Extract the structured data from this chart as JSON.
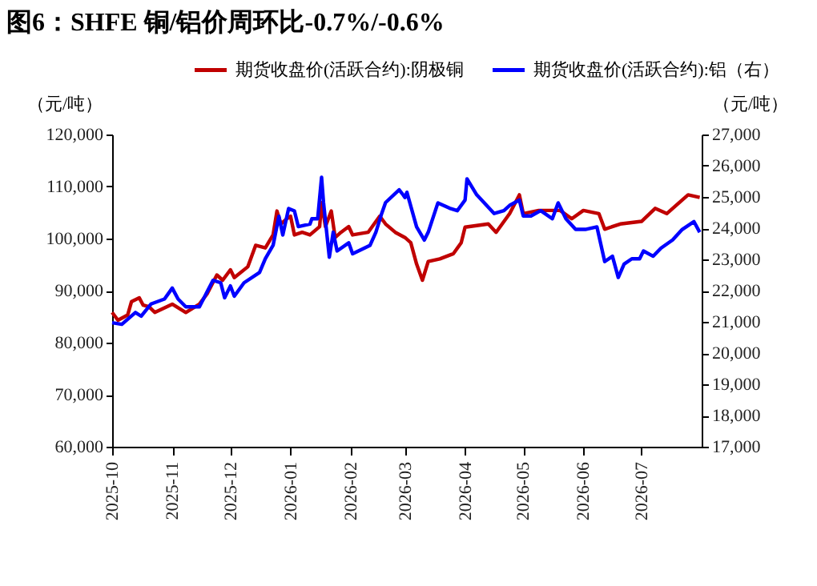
{
  "chart_data": {
    "type": "line",
    "title": "图6：SHFE 铜/铝价周环比-0.7%/-0.6%",
    "ylabel": "（元/吨）",
    "y2label": "（元/吨）",
    "legend": "top",
    "grid": false,
    "marker": "none",
    "line_style": "solid",
    "xlim": [
      "2025-10-01",
      "2026-08-01"
    ],
    "xticks": [
      "2025-10",
      "2025-11",
      "2025-12",
      "2026-01",
      "2026-02",
      "2026-03",
      "2026-04",
      "2026-05",
      "2026-06",
      "2026-07"
    ],
    "ylim": [
      60000,
      120000
    ],
    "yticks": [
      {
        "value": 60000,
        "label": "60,000"
      },
      {
        "value": 70000,
        "label": "70,000"
      },
      {
        "value": 80000,
        "label": "80,000"
      },
      {
        "value": 90000,
        "label": "90,000"
      },
      {
        "value": 100000,
        "label": "100,000"
      },
      {
        "value": 110000,
        "label": "110,000"
      },
      {
        "value": 120000,
        "label": "120,000"
      }
    ],
    "y2lim": [
      17000,
      27000
    ],
    "y2ticks": [
      {
        "value": 17000,
        "label": "17,000"
      },
      {
        "value": 18000,
        "label": "18,000"
      },
      {
        "value": 19000,
        "label": "19,000"
      },
      {
        "value": 20000,
        "label": "20,000"
      },
      {
        "value": 21000,
        "label": "21,000"
      },
      {
        "value": 22000,
        "label": "22,000"
      },
      {
        "value": 23000,
        "label": "23,000"
      },
      {
        "value": 24000,
        "label": "24,000"
      },
      {
        "value": 25000,
        "label": "25,000"
      },
      {
        "value": 26000,
        "label": "26,000"
      },
      {
        "value": 27000,
        "label": "27,000"
      }
    ],
    "series": [
      {
        "name": "期货收盘价(活跃合约):阴极铜",
        "color": "#c00000",
        "x": [
          "2025-10-01",
          "2025-10-04",
          "2025-10-09",
          "2025-10-11",
          "2025-10-15",
          "2025-10-17",
          "2025-10-20",
          "2025-10-23",
          "2025-11-01",
          "2025-11-08",
          "2025-11-15",
          "2025-11-19",
          "2025-11-24",
          "2025-11-27",
          "2025-12-01",
          "2025-12-03",
          "2025-12-10",
          "2025-12-14",
          "2025-12-19",
          "2025-12-23",
          "2025-12-25",
          "2025-12-27",
          "2025-12-30",
          "2026-01-01",
          "2026-01-03",
          "2026-01-07",
          "2026-01-11",
          "2026-01-16",
          "2026-01-17",
          "2026-01-19",
          "2026-01-22",
          "2026-01-24",
          "2026-01-27",
          "2026-01-31",
          "2026-02-02",
          "2026-02-10",
          "2026-02-16",
          "2026-02-19",
          "2026-02-24",
          "2026-03-01",
          "2026-03-04",
          "2026-03-07",
          "2026-03-10",
          "2026-03-13",
          "2026-03-19",
          "2026-03-26",
          "2026-03-30",
          "2026-04-01",
          "2026-04-13",
          "2026-04-17",
          "2026-04-24",
          "2026-04-29",
          "2026-05-01",
          "2026-05-09",
          "2026-05-20",
          "2026-05-26",
          "2026-06-01",
          "2026-06-09",
          "2026-06-12",
          "2026-06-20",
          "2026-07-01",
          "2026-07-08",
          "2026-07-14",
          "2026-07-25",
          "2026-07-31"
        ],
        "values": [
          85800,
          84300,
          85300,
          87900,
          88600,
          87200,
          86900,
          85800,
          87400,
          85800,
          87400,
          89400,
          93000,
          92000,
          94000,
          92500,
          94600,
          98700,
          98200,
          100700,
          105300,
          102800,
          103800,
          104300,
          100700,
          101200,
          100700,
          102300,
          106900,
          102300,
          105300,
          100200,
          101200,
          102300,
          100700,
          101200,
          104300,
          102800,
          101200,
          100200,
          99200,
          95100,
          92000,
          95600,
          96100,
          97100,
          99200,
          102200,
          102800,
          101200,
          104800,
          108400,
          104800,
          105400,
          105400,
          103800,
          105400,
          104800,
          101800,
          102800,
          103300,
          105800,
          104800,
          108400,
          107900
        ]
      },
      {
        "name": "期货收盘价(活跃合约):铝（右）",
        "color": "#0000ff",
        "axis": "y2",
        "x": [
          "2025-10-01",
          "2025-10-06",
          "2025-10-13",
          "2025-10-16",
          "2025-10-21",
          "2025-10-28",
          "2025-11-01",
          "2025-11-04",
          "2025-11-08",
          "2025-11-15",
          "2025-11-22",
          "2025-11-26",
          "2025-11-28",
          "2025-12-01",
          "2025-12-03",
          "2025-12-08",
          "2025-12-16",
          "2025-12-19",
          "2025-12-23",
          "2025-12-26",
          "2025-12-28",
          "2025-12-31",
          "2026-01-03",
          "2026-01-05",
          "2026-01-11",
          "2026-01-12",
          "2026-01-15",
          "2026-01-17",
          "2026-01-18",
          "2026-01-21",
          "2026-01-23",
          "2026-01-25",
          "2026-01-31",
          "2026-02-02",
          "2026-02-11",
          "2026-02-14",
          "2026-02-17",
          "2026-02-19",
          "2026-02-26",
          "2026-02-28",
          "2026-03-01",
          "2026-03-02",
          "2026-03-07",
          "2026-03-11",
          "2026-03-13",
          "2026-03-18",
          "2026-03-24",
          "2026-03-28",
          "2026-04-01",
          "2026-04-02",
          "2026-04-07",
          "2026-04-16",
          "2026-04-21",
          "2026-04-24",
          "2026-04-29",
          "2026-05-01",
          "2026-05-05",
          "2026-05-10",
          "2026-05-16",
          "2026-05-19",
          "2026-05-23",
          "2026-05-28",
          "2026-06-02",
          "2026-06-08",
          "2026-06-12",
          "2026-06-16",
          "2026-06-19",
          "2026-06-22",
          "2026-06-26",
          "2026-06-30",
          "2026-07-02",
          "2026-07-07",
          "2026-07-11",
          "2026-07-17",
          "2026-07-22",
          "2026-07-28",
          "2026-07-31"
        ],
        "values": [
          20970,
          20920,
          21300,
          21180,
          21570,
          21730,
          22080,
          21730,
          21480,
          21480,
          22330,
          22250,
          21770,
          22150,
          21820,
          22250,
          22580,
          23020,
          23450,
          24380,
          23780,
          24630,
          24550,
          24050,
          24130,
          24300,
          24300,
          25630,
          24820,
          23070,
          23870,
          23270,
          23530,
          23180,
          23450,
          23870,
          24470,
          24820,
          25230,
          25070,
          24980,
          25150,
          24040,
          23620,
          23870,
          24810,
          24640,
          24560,
          24900,
          25580,
          25070,
          24470,
          24560,
          24730,
          24900,
          24390,
          24390,
          24560,
          24300,
          24810,
          24300,
          23960,
          23960,
          24040,
          22930,
          23100,
          22420,
          22850,
          23020,
          23020,
          23270,
          23100,
          23360,
          23620,
          23960,
          24210,
          23870
        ]
      }
    ]
  }
}
